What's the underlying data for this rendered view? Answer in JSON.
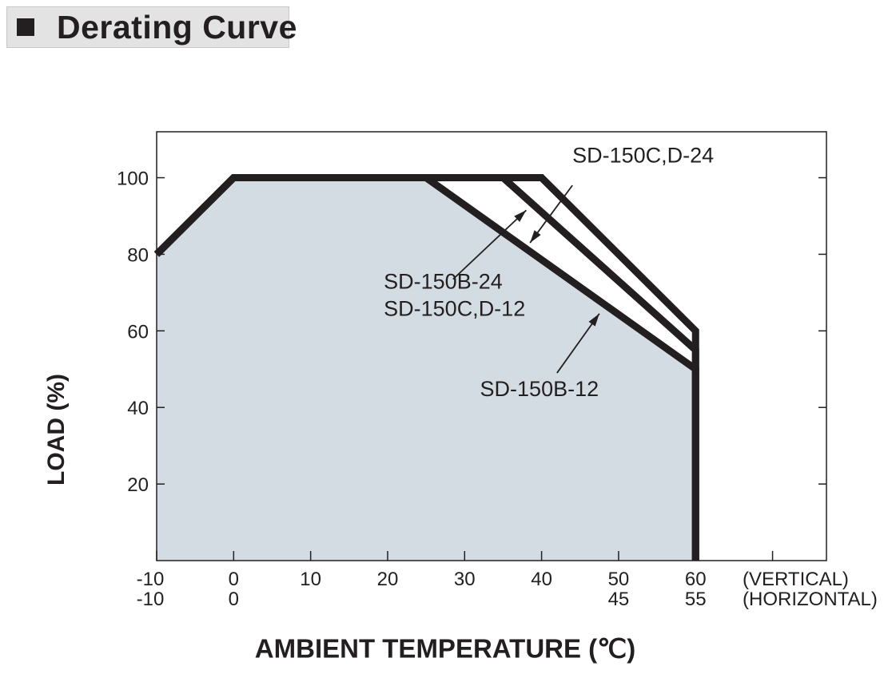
{
  "header": {
    "title": "Derating Curve"
  },
  "chart_data": {
    "type": "line",
    "xlabel": "AMBIENT TEMPERATURE (℃)",
    "ylabel": "LOAD (%)",
    "xlim": [
      -10,
      77
    ],
    "ylim": [
      0,
      112
    ],
    "x_ticks": [
      -10,
      0,
      10,
      20,
      30,
      40,
      50,
      60,
      70
    ],
    "x_tick_labels": [
      "-10",
      "0",
      "10",
      "20",
      "30",
      "40",
      "50",
      "60"
    ],
    "x_secondary_ticks": [
      {
        "x": -10,
        "label": "-10"
      },
      {
        "x": 0,
        "label": "0"
      },
      {
        "x": 50,
        "label": "45"
      },
      {
        "x": 60,
        "label": "55"
      }
    ],
    "x_row_labels": [
      "(VERTICAL)",
      "(HORIZONTAL)"
    ],
    "y_ticks": [
      20,
      40,
      60,
      80,
      100
    ],
    "y_tick_labels": [
      "20",
      "40",
      "60",
      "80",
      "100"
    ],
    "grid": false,
    "series": [
      {
        "name": "SD-150C,D-24",
        "x": [
          -10,
          0,
          40,
          60,
          60
        ],
        "y": [
          80,
          100,
          100,
          60,
          0
        ]
      },
      {
        "name": "SD-150B-24 SD-150C,D-12",
        "x": [
          -10,
          0,
          35,
          60,
          60
        ],
        "y": [
          80,
          100,
          100,
          55,
          0
        ]
      },
      {
        "name": "SD-150B-12",
        "x": [
          -10,
          0,
          25,
          60,
          60
        ],
        "y": [
          80,
          100,
          100,
          50,
          0
        ]
      }
    ],
    "annotations": [
      {
        "lines": [
          "SD-150C,D-24"
        ],
        "series": "SD-150C,D-24",
        "text_at": [
          44,
          104
        ],
        "arrow_from": [
          44,
          98
        ],
        "arrow_to": [
          38.5,
          83
        ]
      },
      {
        "lines": [
          "SD-150B-24",
          "SD-150C,D-12"
        ],
        "series": "SD-150B-24 SD-150C,D-12",
        "text_at": [
          19.5,
          71
        ],
        "arrow_from": [
          28.5,
          73.5
        ],
        "arrow_to": [
          38,
          91.5
        ]
      },
      {
        "lines": [
          "SD-150B-12"
        ],
        "series": "SD-150B-12",
        "text_at": [
          32,
          43
        ],
        "arrow_from": [
          42,
          49
        ],
        "arrow_to": [
          47.5,
          64.5
        ]
      }
    ],
    "colors": {
      "line": "#231f20",
      "fill": "#d4dce3",
      "axis": "#231f20"
    }
  }
}
